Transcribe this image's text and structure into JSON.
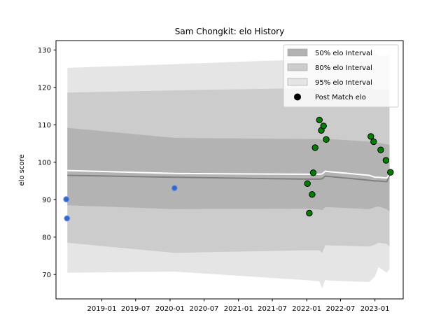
{
  "chart_data": {
    "type": "scatter",
    "title": "Sam Chongkit: elo History",
    "xlabel": "",
    "ylabel": "elo score",
    "xlim": [
      "2018-05-01",
      "2023-06-01"
    ],
    "ylim": [
      63.5,
      132.5
    ],
    "x_ticks": [
      "2019-01",
      "2019-07",
      "2020-01",
      "2020-07",
      "2021-01",
      "2021-07",
      "2022-01",
      "2022-07",
      "2023-01"
    ],
    "y_ticks": [
      70,
      80,
      90,
      100,
      110,
      120,
      130
    ],
    "legend_position": "top-right",
    "legend": [
      {
        "label": "50% elo Interval",
        "kind": "band50"
      },
      {
        "label": "80% elo Interval",
        "kind": "band80"
      },
      {
        "label": "95% elo Interval",
        "kind": "band95"
      },
      {
        "label": "Post Match elo",
        "kind": "marker"
      }
    ],
    "colors": {
      "band50": "#b3b3b3",
      "band80": "#cccccc",
      "band95": "#e5e5e5",
      "median_line": "#808080",
      "mean_line": "#ffffff",
      "win_point": "#008000",
      "other_point": "#3366cc"
    },
    "intervals": {
      "x": [
        "2018-07-01",
        "2020-01-25",
        "2022-01-01",
        "2022-03-10",
        "2022-03-25",
        "2022-04-10",
        "2022-05-01",
        "2022-12-01",
        "2023-01-01",
        "2023-01-20",
        "2023-03-05",
        "2023-03-20"
      ],
      "p95_low": [
        70.5,
        70.8,
        68.5,
        68.2,
        66.3,
        68.6,
        68.4,
        68.0,
        69.5,
        72.0,
        70.5,
        71.5
      ],
      "p95_high": [
        125.2,
        126.2,
        127.5,
        128.0,
        128.0,
        128.0,
        128.0,
        129.5,
        129.0,
        128.5,
        128.5,
        129.0
      ],
      "p80_low": [
        78.5,
        75.8,
        76.5,
        76.5,
        75.8,
        77.8,
        77.8,
        77.5,
        78.0,
        78.5,
        78.2,
        77.5
      ],
      "p80_high": [
        118.6,
        119.2,
        119.8,
        119.8,
        119.8,
        119.8,
        120.0,
        120.0,
        119.5,
        119.5,
        119.5,
        119.5
      ],
      "p50_low": [
        88.5,
        87.5,
        87.6,
        87.4,
        87.2,
        88.0,
        88.0,
        87.5,
        88.0,
        88.2,
        87.5,
        86.8
      ],
      "p50_high": [
        109.2,
        106.5,
        106.2,
        106.2,
        106.0,
        106.2,
        106.2,
        105.5,
        105.2,
        105.2,
        104.8,
        104.7
      ],
      "median": [
        96.5,
        96.0,
        95.5,
        95.5,
        95.6,
        96.3,
        96.2,
        95.2,
        95.0,
        95.0,
        94.8,
        96.5
      ],
      "mean": [
        97.8,
        97.0,
        96.8,
        96.8,
        96.9,
        97.6,
        97.5,
        96.5,
        96.0,
        96.0,
        95.8,
        96.8
      ]
    },
    "points": [
      {
        "date": "2018-06-25",
        "elo": 90.1,
        "kind": "other"
      },
      {
        "date": "2018-06-29",
        "elo": 85.0,
        "kind": "other"
      },
      {
        "date": "2020-01-25",
        "elo": 93.1,
        "kind": "other"
      },
      {
        "date": "2022-01-05",
        "elo": 94.3,
        "kind": "win"
      },
      {
        "date": "2022-01-15",
        "elo": 86.4,
        "kind": "win"
      },
      {
        "date": "2022-01-30",
        "elo": 91.4,
        "kind": "win"
      },
      {
        "date": "2022-02-05",
        "elo": 97.2,
        "kind": "win"
      },
      {
        "date": "2022-02-15",
        "elo": 103.9,
        "kind": "win"
      },
      {
        "date": "2022-03-10",
        "elo": 111.3,
        "kind": "win"
      },
      {
        "date": "2022-03-20",
        "elo": 108.5,
        "kind": "win"
      },
      {
        "date": "2022-04-01",
        "elo": 109.7,
        "kind": "win"
      },
      {
        "date": "2022-04-15",
        "elo": 106.1,
        "kind": "win"
      },
      {
        "date": "2022-12-10",
        "elo": 106.9,
        "kind": "win"
      },
      {
        "date": "2022-12-25",
        "elo": 105.5,
        "kind": "win"
      },
      {
        "date": "2023-02-01",
        "elo": 103.3,
        "kind": "win"
      },
      {
        "date": "2023-03-01",
        "elo": 100.5,
        "kind": "win"
      },
      {
        "date": "2023-03-25",
        "elo": 97.3,
        "kind": "win"
      }
    ]
  }
}
